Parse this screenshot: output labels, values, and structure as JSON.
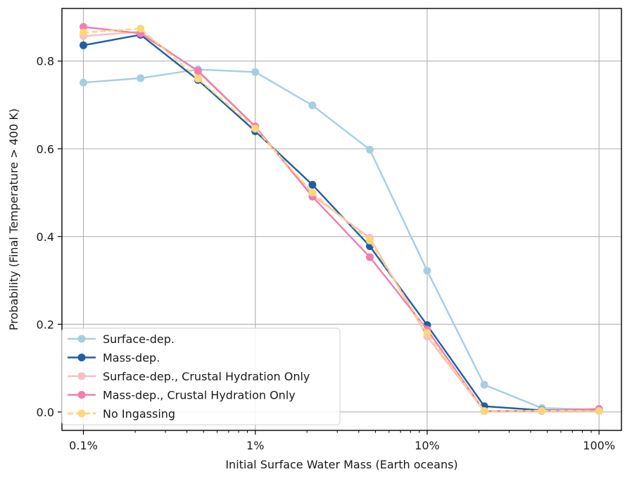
{
  "chart_data": {
    "type": "line",
    "title": "",
    "xlabel": "Initial Surface Water Mass (Earth oceans)",
    "ylabel": "Probability (Final Temperature > 400 K)",
    "x_scale": "log",
    "xlim": [
      0.00075,
      1.35
    ],
    "ylim": [
      -0.042,
      0.92
    ],
    "x": [
      0.001,
      0.00215,
      0.00464,
      0.01,
      0.0215,
      0.0464,
      0.1,
      0.215,
      0.464,
      1.0
    ],
    "x_ticks": [
      0.001,
      0.01,
      0.1,
      1.0
    ],
    "x_tick_labels": [
      "0.1%",
      "1%",
      "10%",
      "100%"
    ],
    "y_ticks": [
      0.0,
      0.2,
      0.4,
      0.6,
      0.8
    ],
    "y_tick_labels": [
      "0.0",
      "0.2",
      "0.4",
      "0.6",
      "0.8"
    ],
    "grid": true,
    "legend_position": "lower-left",
    "series": [
      {
        "name": "Surface-dep.",
        "color": "#a6cee3",
        "dashed": false,
        "values": [
          0.751,
          0.761,
          0.781,
          0.775,
          0.699,
          0.598,
          0.322,
          0.062,
          0.009,
          0.005
        ]
      },
      {
        "name": "Mass-dep.",
        "color": "#1f5fa3",
        "dashed": false,
        "values": [
          0.836,
          0.86,
          0.757,
          0.64,
          0.518,
          0.378,
          0.198,
          0.013,
          0.004,
          0.004
        ]
      },
      {
        "name": "Surface-dep., Crustal Hydration Only",
        "color": "#f8bfc4",
        "dashed": false,
        "values": [
          0.857,
          0.867,
          0.776,
          0.65,
          0.494,
          0.397,
          0.172,
          0.002,
          0.002,
          0.002
        ]
      },
      {
        "name": "Mass-dep., Crustal Hydration Only",
        "color": "#ef7fb0",
        "dashed": false,
        "values": [
          0.878,
          0.863,
          0.778,
          0.651,
          0.491,
          0.353,
          0.188,
          0.002,
          0.003,
          0.007
        ]
      },
      {
        "name": "No Ingassing",
        "color": "#fdd67b",
        "dashed": true,
        "values": [
          0.865,
          0.874,
          0.76,
          0.646,
          0.5,
          0.391,
          0.18,
          0.002,
          0.003,
          0.002
        ]
      }
    ]
  }
}
